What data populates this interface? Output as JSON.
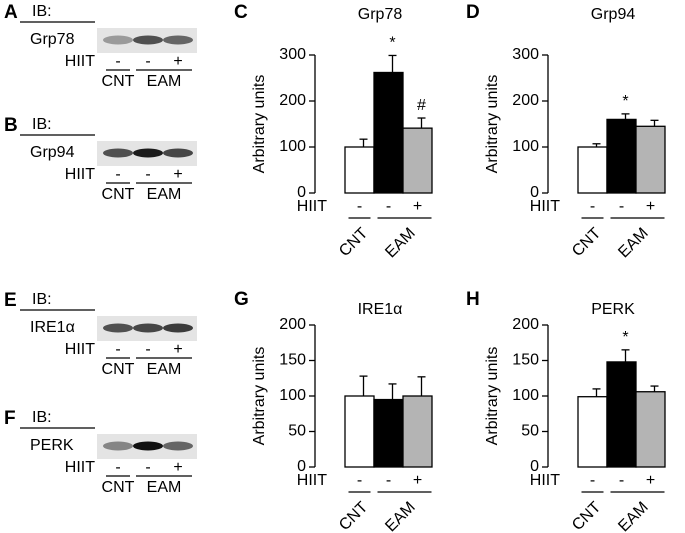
{
  "blots": [
    {
      "panel": "A",
      "ib": "IB:",
      "protein": "Grp78",
      "hiit_label": "HIIT",
      "signs": [
        "-",
        "-",
        "+"
      ],
      "groups": [
        "CNT",
        "EAM"
      ]
    },
    {
      "panel": "B",
      "ib": "IB:",
      "protein": "Grp94",
      "hiit_label": "HIIT",
      "signs": [
        "-",
        "-",
        "+"
      ],
      "groups": [
        "CNT",
        "EAM"
      ]
    },
    {
      "panel": "E",
      "ib": "IB:",
      "protein": "IRE1α",
      "hiit_label": "HIIT",
      "signs": [
        "-",
        "-",
        "+"
      ],
      "groups": [
        "CNT",
        "EAM"
      ]
    },
    {
      "panel": "F",
      "ib": "IB:",
      "protein": "PERK",
      "hiit_label": "HIIT",
      "signs": [
        "-",
        "-",
        "+"
      ],
      "groups": [
        "CNT",
        "EAM"
      ]
    }
  ],
  "chart_data": [
    {
      "type": "bar",
      "panel": "C",
      "title": "Grp78",
      "ylabel": "Arbitrary units",
      "hiit_label": "HIIT",
      "categories": [
        "-",
        "-",
        "+"
      ],
      "groups": [
        "CNT",
        "EAM"
      ],
      "values": [
        100,
        262,
        141
      ],
      "errors": [
        17,
        37,
        22
      ],
      "colors": [
        "#ffffff",
        "#000000",
        "#b4b4b4"
      ],
      "value_annotations": [
        null,
        "*",
        "#"
      ],
      "ylim": [
        0,
        300
      ],
      "yticks": [
        0,
        100,
        200,
        300
      ]
    },
    {
      "type": "bar",
      "panel": "D",
      "title": "Grp94",
      "ylabel": "Arbitrary units",
      "hiit_label": "HIIT",
      "categories": [
        "-",
        "-",
        "+"
      ],
      "groups": [
        "CNT",
        "EAM"
      ],
      "values": [
        100,
        160,
        145
      ],
      "errors": [
        7,
        12,
        13
      ],
      "colors": [
        "#ffffff",
        "#000000",
        "#b4b4b4"
      ],
      "value_annotations": [
        null,
        "*",
        null
      ],
      "ylim": [
        0,
        300
      ],
      "yticks": [
        0,
        100,
        200,
        300
      ]
    },
    {
      "type": "bar",
      "panel": "G",
      "title": "IRE1α",
      "ylabel": "Arbitrary units",
      "hiit_label": "HIIT",
      "categories": [
        "-",
        "-",
        "+"
      ],
      "groups": [
        "CNT",
        "EAM"
      ],
      "values": [
        100,
        95,
        100
      ],
      "errors": [
        28,
        22,
        27
      ],
      "colors": [
        "#ffffff",
        "#000000",
        "#b4b4b4"
      ],
      "value_annotations": [
        null,
        null,
        null
      ],
      "ylim": [
        0,
        200
      ],
      "yticks": [
        0,
        50,
        100,
        150,
        200
      ]
    },
    {
      "type": "bar",
      "panel": "H",
      "title": "PERK",
      "ylabel": "Arbitrary units",
      "hiit_label": "HIIT",
      "categories": [
        "-",
        "-",
        "+"
      ],
      "groups": [
        "CNT",
        "EAM"
      ],
      "values": [
        99,
        148,
        106
      ],
      "errors": [
        11,
        17,
        8
      ],
      "colors": [
        "#ffffff",
        "#000000",
        "#b4b4b4"
      ],
      "value_annotations": [
        null,
        "*",
        null
      ],
      "ylim": [
        0,
        200
      ],
      "yticks": [
        0,
        50,
        100,
        150,
        200
      ]
    }
  ]
}
